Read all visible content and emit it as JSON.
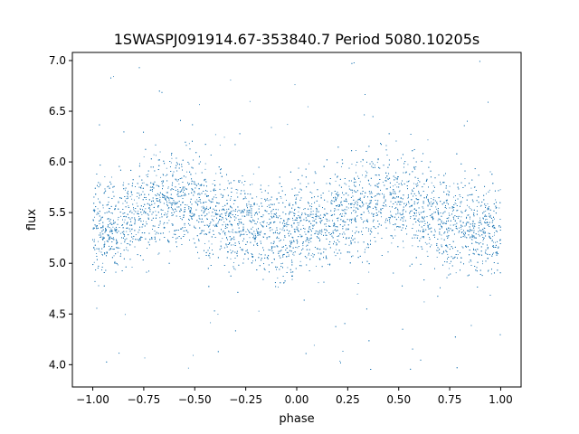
{
  "chart_data": {
    "type": "scatter",
    "title": "1SWASPJ091914.67-353840.7 Period 5080.10205s",
    "xlabel": "phase",
    "ylabel": "flux",
    "xlim": [
      -1.1,
      1.1
    ],
    "ylim": [
      3.78,
      7.08
    ],
    "xticks": [
      {
        "value": -1.0,
        "label": "−1.00"
      },
      {
        "value": -0.75,
        "label": "−0.75"
      },
      {
        "value": -0.5,
        "label": "−0.50"
      },
      {
        "value": -0.25,
        "label": "−0.25"
      },
      {
        "value": 0.0,
        "label": "0.00"
      },
      {
        "value": 0.25,
        "label": "0.25"
      },
      {
        "value": 0.5,
        "label": "0.50"
      },
      {
        "value": 0.75,
        "label": "0.75"
      },
      {
        "value": 1.0,
        "label": "1.00"
      }
    ],
    "yticks": [
      {
        "value": 4.0,
        "label": "4.0"
      },
      {
        "value": 4.5,
        "label": "4.5"
      },
      {
        "value": 5.0,
        "label": "5.0"
      },
      {
        "value": 5.5,
        "label": "5.5"
      },
      {
        "value": 6.0,
        "label": "6.0"
      },
      {
        "value": 6.5,
        "label": "6.5"
      },
      {
        "value": 7.0,
        "label": "7.0"
      }
    ],
    "grid": false,
    "legend": "none",
    "point_color": "#1f77b4",
    "x_range": [
      -1.0,
      1.0
    ],
    "trend": [
      {
        "x": -1.0,
        "y": 5.32
      },
      {
        "x": -0.9,
        "y": 5.36
      },
      {
        "x": -0.8,
        "y": 5.45
      },
      {
        "x": -0.7,
        "y": 5.6
      },
      {
        "x": -0.6,
        "y": 5.65
      },
      {
        "x": -0.5,
        "y": 5.58
      },
      {
        "x": -0.4,
        "y": 5.5
      },
      {
        "x": -0.3,
        "y": 5.42
      },
      {
        "x": -0.2,
        "y": 5.35
      },
      {
        "x": -0.1,
        "y": 5.3
      },
      {
        "x": 0.0,
        "y": 5.3
      },
      {
        "x": 0.1,
        "y": 5.36
      },
      {
        "x": 0.2,
        "y": 5.45
      },
      {
        "x": 0.3,
        "y": 5.6
      },
      {
        "x": 0.4,
        "y": 5.65
      },
      {
        "x": 0.5,
        "y": 5.58
      },
      {
        "x": 0.6,
        "y": 5.5
      },
      {
        "x": 0.7,
        "y": 5.42
      },
      {
        "x": 0.8,
        "y": 5.35
      },
      {
        "x": 0.9,
        "y": 5.3
      },
      {
        "x": 1.0,
        "y": 5.3
      }
    ],
    "scatter_sd": 0.22,
    "outlier_range": [
      3.9,
      7.0
    ]
  }
}
